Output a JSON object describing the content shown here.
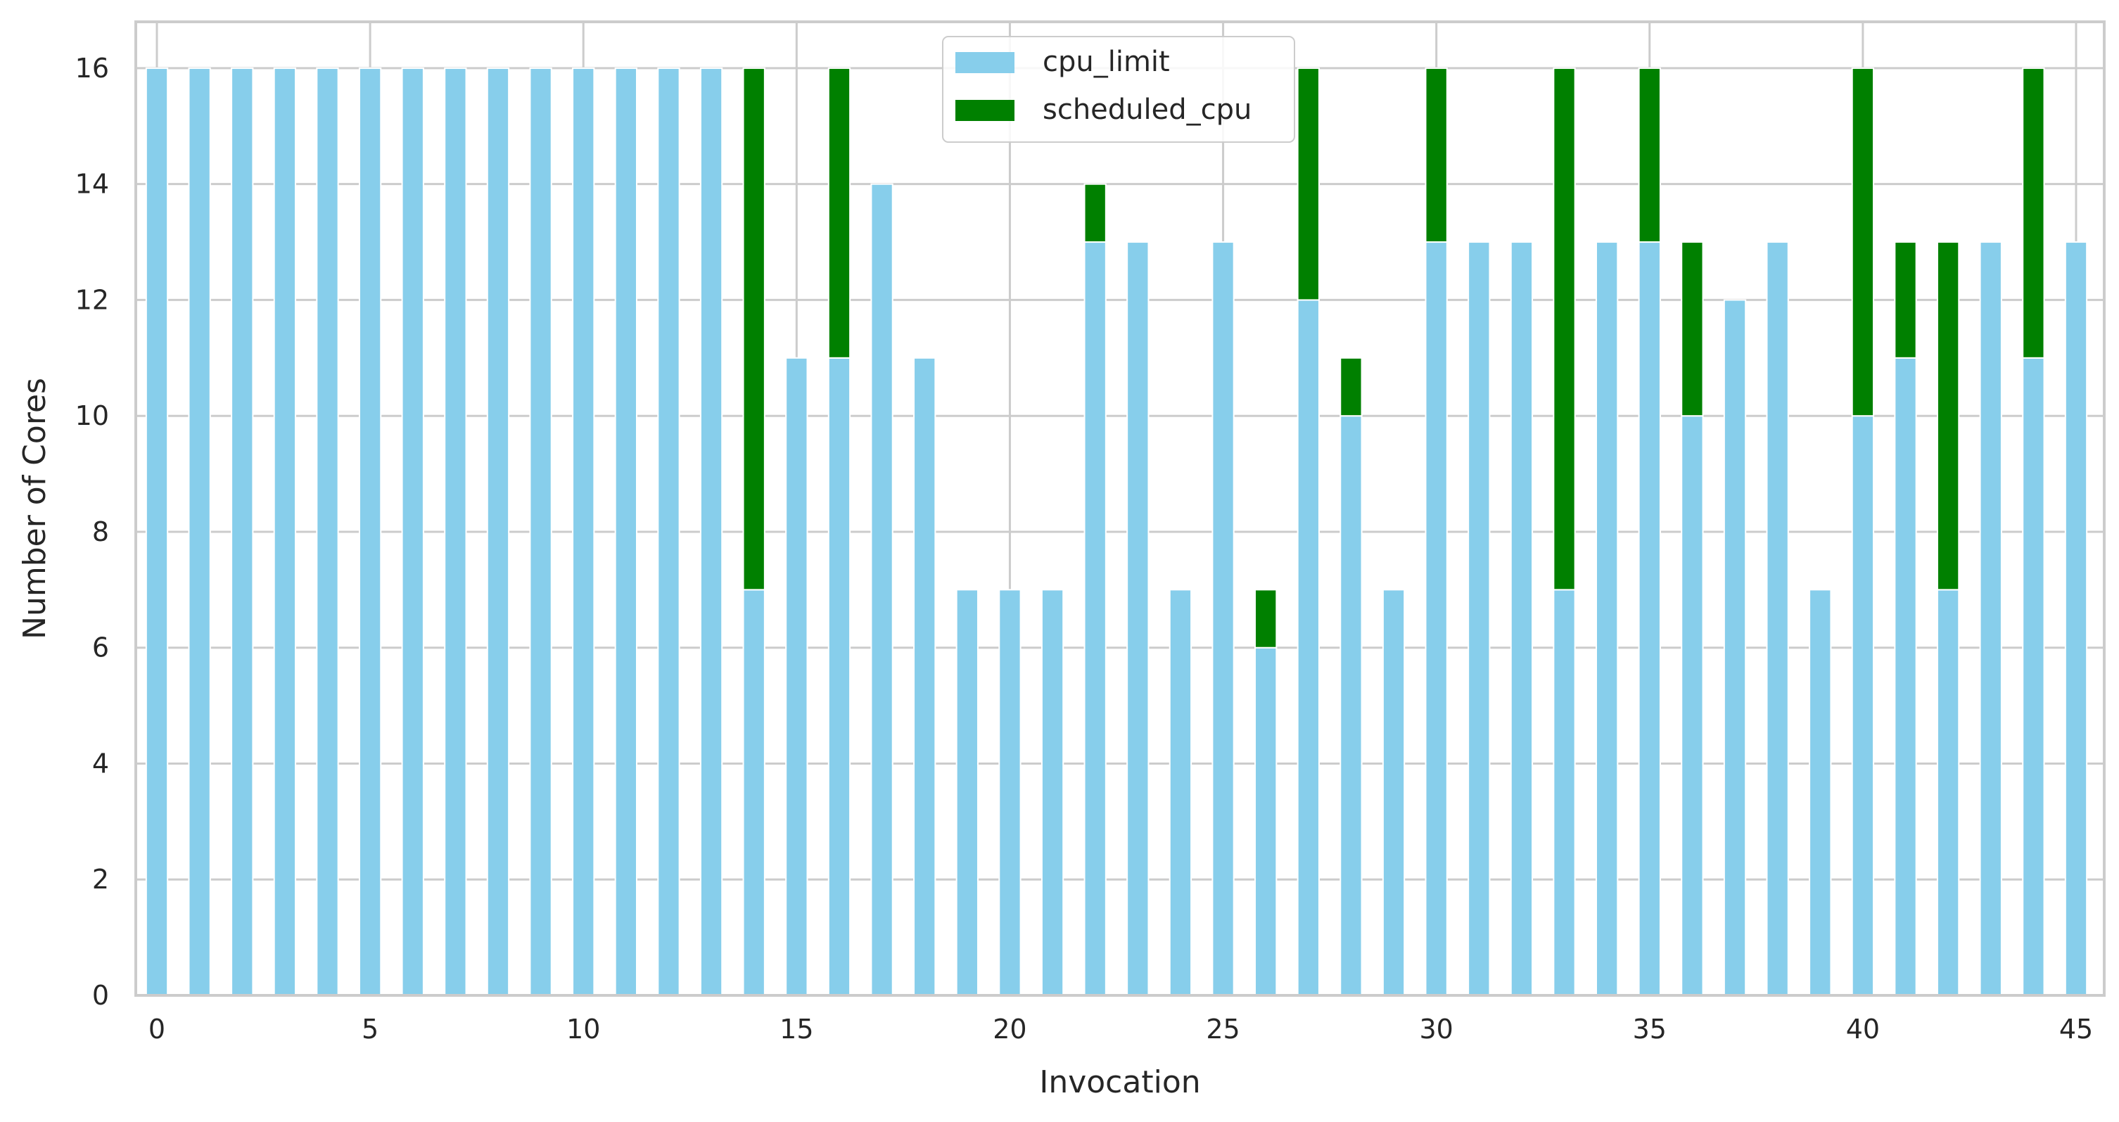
{
  "chart_data": {
    "type": "bar",
    "stacked": true,
    "xlabel": "Invocation",
    "ylabel": "Number of Cores",
    "ylim": [
      0,
      16.8
    ],
    "yticks": [
      0,
      2,
      4,
      6,
      8,
      10,
      12,
      14,
      16
    ],
    "xticks": [
      0,
      5,
      10,
      15,
      20,
      25,
      30,
      35,
      40,
      45
    ],
    "categories": [
      0,
      1,
      2,
      3,
      4,
      5,
      6,
      7,
      8,
      9,
      10,
      11,
      12,
      13,
      14,
      15,
      16,
      17,
      18,
      19,
      20,
      21,
      22,
      23,
      24,
      25,
      26,
      27,
      28,
      29,
      30,
      31,
      32,
      33,
      34,
      35,
      36,
      37,
      38,
      39,
      40,
      41,
      42,
      43,
      44,
      45
    ],
    "grid": true,
    "legend_position": "top-center",
    "series": [
      {
        "name": "cpu_limit",
        "color": "#87ceeb",
        "values": [
          16,
          16,
          16,
          16,
          16,
          16,
          16,
          16,
          16,
          16,
          16,
          16,
          16,
          16,
          7,
          11,
          11,
          14,
          11,
          7,
          7,
          7,
          13,
          13,
          7,
          13,
          6,
          12,
          10,
          7,
          13,
          13,
          13,
          7,
          13,
          13,
          10,
          12,
          13,
          7,
          10,
          11,
          7,
          13,
          11,
          13
        ]
      },
      {
        "name": "scheduled_cpu",
        "color": "#008000",
        "values": [
          0,
          0,
          0,
          0,
          0,
          0,
          0,
          0,
          0,
          0,
          0,
          0,
          0,
          0,
          9,
          0,
          5,
          0,
          0,
          0,
          0,
          0,
          1,
          0,
          0,
          0,
          1,
          4,
          1,
          0,
          3,
          0,
          0,
          9,
          0,
          3,
          3,
          0,
          0,
          0,
          6,
          2,
          6,
          0,
          5,
          0
        ]
      }
    ]
  }
}
